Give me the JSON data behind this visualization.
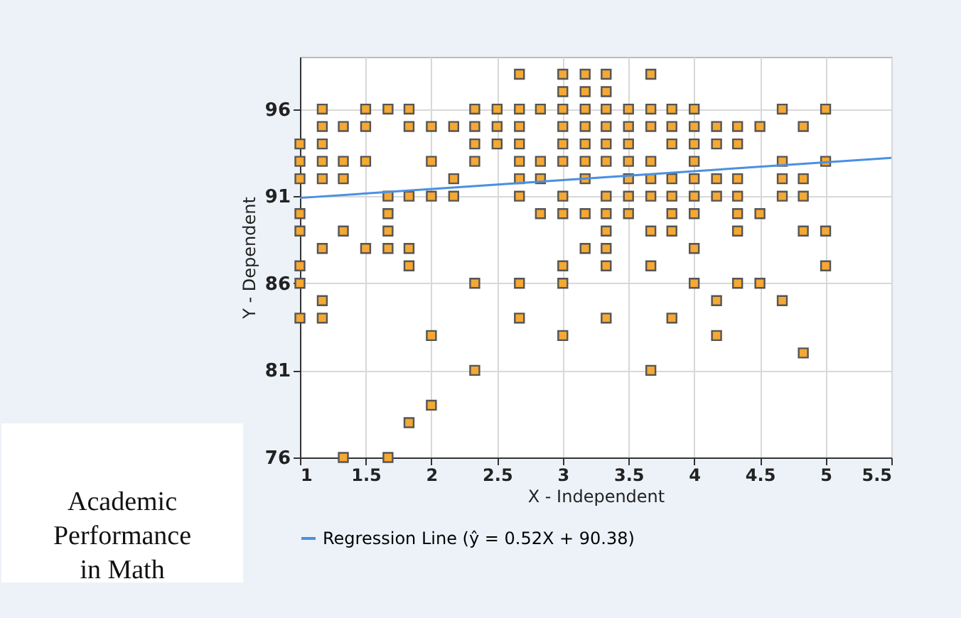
{
  "chart_data": {
    "type": "scatter",
    "xlabel": "X - Independent",
    "ylabel": "Y - Dependent",
    "xlim": [
      1,
      5.5
    ],
    "xticks": [
      1,
      1.5,
      2,
      2.5,
      3,
      3.5,
      4,
      4.5,
      5,
      5.5
    ],
    "ylim": [
      76,
      99
    ],
    "yticks": [
      76,
      81,
      86,
      91,
      96
    ],
    "grid": true,
    "legend": "bottom",
    "annotations": [
      "Academic Performance in Math"
    ],
    "series": [
      {
        "color": "#f5a833",
        "marker": "square",
        "x": [
          1,
          1,
          1,
          1,
          1,
          1,
          1,
          1,
          1.17,
          1.17,
          1.17,
          1.17,
          1.17,
          1.17,
          1.17,
          1.17,
          1.33,
          1.33,
          1.33,
          1.33,
          1.33,
          1.5,
          1.5,
          1.5,
          1.5,
          1.67,
          1.67,
          1.67,
          1.67,
          1.67,
          1.67,
          1.83,
          1.83,
          1.83,
          1.83,
          1.83,
          1.83,
          2,
          2,
          2,
          2,
          2,
          2.17,
          2.17,
          2.17,
          2.33,
          2.33,
          2.33,
          2.33,
          2.33,
          2.33,
          2.5,
          2.5,
          2.5,
          2.67,
          2.67,
          2.67,
          2.67,
          2.67,
          2.67,
          2.67,
          2.67,
          2.67,
          2.83,
          2.83,
          2.83,
          2.83,
          3,
          3,
          3,
          3,
          3,
          3,
          3,
          3,
          3,
          3,
          3,
          3.17,
          3.17,
          3.17,
          3.17,
          3.17,
          3.17,
          3.17,
          3.17,
          3.17,
          3.33,
          3.33,
          3.33,
          3.33,
          3.33,
          3.33,
          3.33,
          3.33,
          3.33,
          3.33,
          3.33,
          3.33,
          3.5,
          3.5,
          3.5,
          3.5,
          3.5,
          3.5,
          3.5,
          3.67,
          3.67,
          3.67,
          3.67,
          3.67,
          3.67,
          3.67,
          3.67,
          3.67,
          3.83,
          3.83,
          3.83,
          3.83,
          3.83,
          3.83,
          3.83,
          3.83,
          4,
          4,
          4,
          4,
          4,
          4,
          4,
          4,
          4,
          4.17,
          4.17,
          4.17,
          4.17,
          4.17,
          4.17,
          4.33,
          4.33,
          4.33,
          4.33,
          4.33,
          4.33,
          4.33,
          4.5,
          4.5,
          4.5,
          4.67,
          4.67,
          4.67,
          4.67,
          4.67,
          4.83,
          4.83,
          4.83,
          4.83,
          4.83,
          5,
          5,
          5,
          5
        ],
        "values": [
          94,
          93,
          92,
          90,
          89,
          87,
          86,
          84,
          96,
          95,
          94,
          93,
          92,
          88,
          85,
          84,
          95,
          93,
          92,
          89,
          76,
          96,
          95,
          93,
          88,
          96,
          91,
          90,
          89,
          88,
          76,
          96,
          95,
          91,
          88,
          87,
          78,
          95,
          93,
          91,
          83,
          79,
          95,
          92,
          91,
          96,
          95,
          94,
          93,
          86,
          81,
          96,
          95,
          94,
          98,
          96,
          95,
          94,
          93,
          92,
          91,
          86,
          84,
          96,
          93,
          92,
          90,
          98,
          97,
          96,
          95,
          94,
          93,
          91,
          90,
          87,
          86,
          83,
          98,
          97,
          96,
          95,
          94,
          93,
          92,
          90,
          88,
          98,
          97,
          96,
          95,
          94,
          93,
          91,
          90,
          89,
          88,
          87,
          84,
          96,
          95,
          94,
          93,
          92,
          91,
          90,
          98,
          96,
          95,
          93,
          92,
          91,
          89,
          87,
          81,
          96,
          95,
          94,
          92,
          91,
          90,
          89,
          84,
          96,
          95,
          94,
          93,
          92,
          91,
          90,
          88,
          86,
          95,
          94,
          92,
          91,
          85,
          83,
          95,
          94,
          92,
          91,
          90,
          89,
          86,
          95,
          90,
          86,
          96,
          93,
          92,
          91,
          85,
          95,
          92,
          91,
          89,
          82,
          96,
          93,
          89,
          87
        ]
      },
      {
        "type": "line",
        "name": "Regression Line (ŷ = 0.52X + 90.38)",
        "color": "#4a90e2",
        "line_style": "solid",
        "x": [
          1,
          5.5
        ],
        "values": [
          90.9,
          93.2
        ]
      }
    ]
  }
}
